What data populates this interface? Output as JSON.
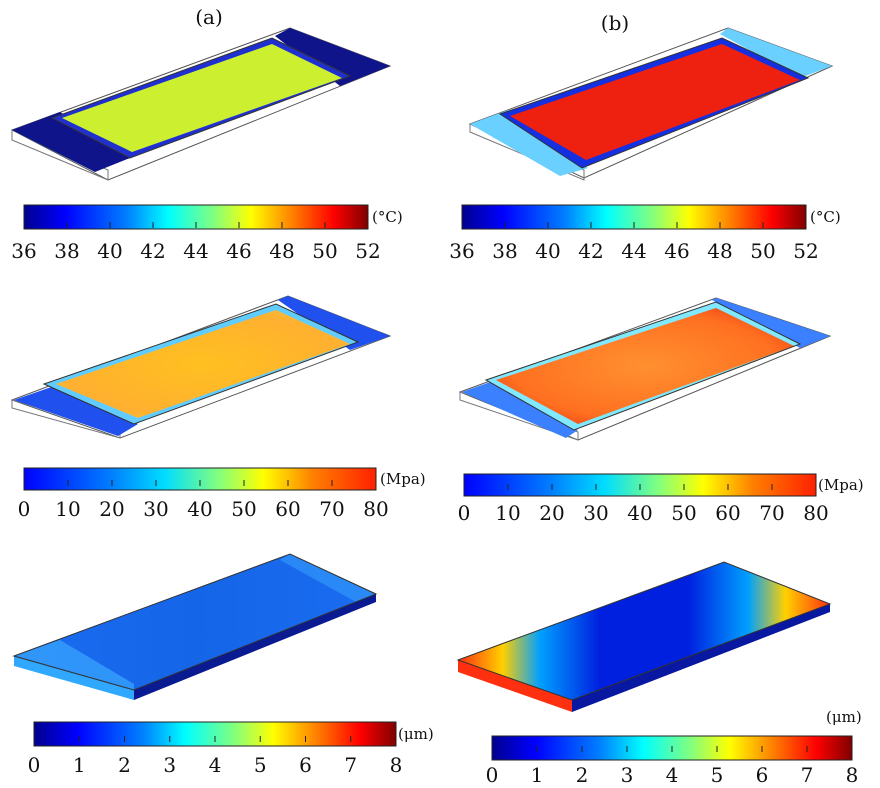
{
  "panels": {
    "a_label": "(a)",
    "b_label": "(b)"
  },
  "colorbars": {
    "temperature": {
      "unit": "(°C)",
      "ticks": [
        "36",
        "38",
        "40",
        "42",
        "44",
        "46",
        "48",
        "50",
        "52"
      ],
      "range": [
        36,
        52
      ]
    },
    "stress": {
      "unit": "(Mpa)",
      "ticks": [
        "0",
        "10",
        "20",
        "30",
        "40",
        "50",
        "60",
        "70",
        "80"
      ],
      "range": [
        0,
        80
      ]
    },
    "displacement": {
      "unit": "(μm)",
      "ticks": [
        "0",
        "1",
        "2",
        "3",
        "4",
        "5",
        "6",
        "7",
        "8"
      ],
      "range": [
        0,
        8
      ]
    }
  },
  "colormap": {
    "name": "jet",
    "stops": [
      "#00008f",
      "#0000ff",
      "#0080ff",
      "#00ffff",
      "#80ff80",
      "#ffff00",
      "#ff8000",
      "#ff0000",
      "#800000"
    ]
  }
}
